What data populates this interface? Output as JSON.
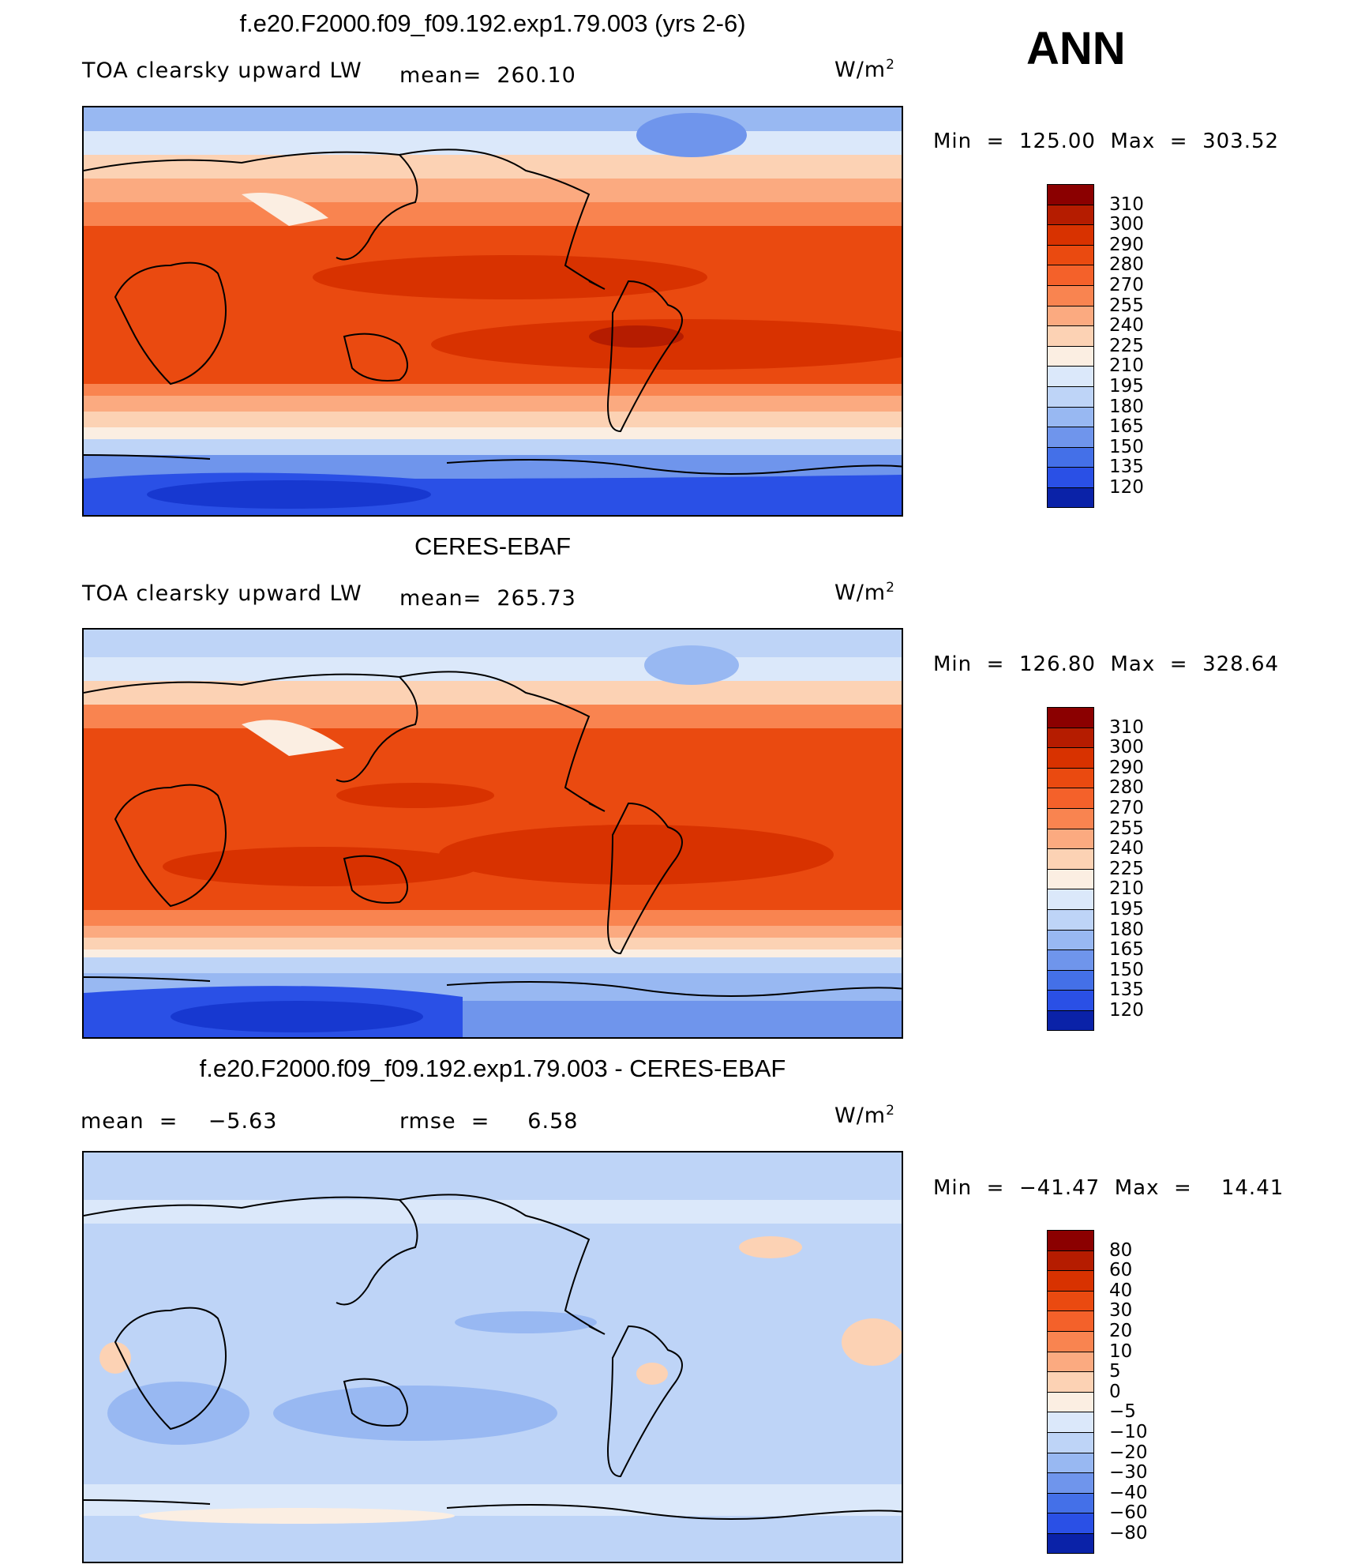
{
  "season": "ANN",
  "panels": [
    {
      "title": "f.e20.F2000.f09_f09.192.exp1.79.003 (yrs 2-6)",
      "left_text": "TOA clearsky upward LW",
      "center_text": "mean=  260.10",
      "unit_base": "W/m",
      "unit_exp": "2",
      "minmax": "Min  =  125.00  Max  =  303.52",
      "levels": [
        "310",
        "300",
        "290",
        "280",
        "270",
        "255",
        "240",
        "225",
        "210",
        "195",
        "180",
        "165",
        "150",
        "135",
        "120"
      ],
      "colors": [
        "#8b0000",
        "#b51c00",
        "#d83200",
        "#ea4a10",
        "#f4612a",
        "#f98450",
        "#fbaa80",
        "#fcd2b4",
        "#fbeee2",
        "#dbe8fa",
        "#bed4f7",
        "#98b8f2",
        "#6f95ec",
        "#4470e8",
        "#2a50e6",
        "#1738d0",
        "#0a22a8",
        "#03137c"
      ],
      "bar_colors": [
        "#8b0000",
        "#b51c00",
        "#d83200",
        "#ea4a10",
        "#f4612a",
        "#f98450",
        "#fbaa80",
        "#fcd2b4",
        "#fbeee2",
        "#dbe8fa",
        "#bed4f7",
        "#98b8f2",
        "#6f95ec",
        "#4470e8",
        "#2a50e6",
        "#0a22a8"
      ]
    },
    {
      "title": "CERES-EBAF",
      "left_text": "TOA clearsky upward LW",
      "center_text": "mean=  265.73",
      "unit_base": "W/m",
      "unit_exp": "2",
      "minmax": "Min  =  126.80  Max  =  328.64",
      "levels": [
        "310",
        "300",
        "290",
        "280",
        "270",
        "255",
        "240",
        "225",
        "210",
        "195",
        "180",
        "165",
        "150",
        "135",
        "120"
      ],
      "bar_colors": [
        "#8b0000",
        "#b51c00",
        "#d83200",
        "#ea4a10",
        "#f4612a",
        "#f98450",
        "#fbaa80",
        "#fcd2b4",
        "#fbeee2",
        "#dbe8fa",
        "#bed4f7",
        "#98b8f2",
        "#6f95ec",
        "#4470e8",
        "#2a50e6",
        "#0a22a8"
      ]
    },
    {
      "title": "f.e20.F2000.f09_f09.192.exp1.79.003 - CERES-EBAF",
      "left_text": "mean  =    −5.63",
      "center_text": "rmse  =     6.58",
      "unit_base": "W/m",
      "unit_exp": "2",
      "minmax": "Min  =  −41.47  Max  =    14.41",
      "levels": [
        "80",
        "60",
        "40",
        "30",
        "20",
        "10",
        "5",
        "0",
        "−5",
        "−10",
        "−20",
        "−30",
        "−40",
        "−60",
        "−80"
      ],
      "bar_colors": [
        "#8b0000",
        "#b51c00",
        "#d83200",
        "#ea4a10",
        "#f4612a",
        "#f98450",
        "#fbaa80",
        "#fcd2b4",
        "#fbeee2",
        "#dbe8fa",
        "#bed4f7",
        "#98b8f2",
        "#6f95ec",
        "#4470e8",
        "#2a50e6",
        "#0a22a8"
      ]
    }
  ]
}
